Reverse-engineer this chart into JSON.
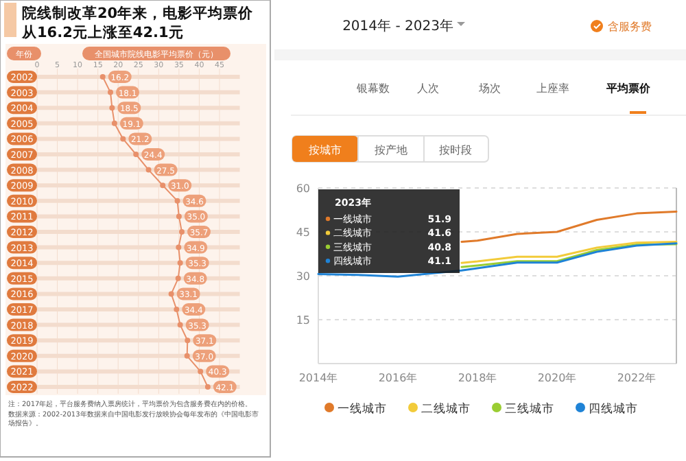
{
  "chart_data": [
    {
      "type": "line",
      "orientation": "horizontal",
      "title": "院线制改革20年来，电影平均票价从16.2元上涨至42.1元",
      "xlabel": "全国城市院线电影平均票价（元）",
      "ylabel": "年份",
      "categories": [
        "2002",
        "2003",
        "2004",
        "2005",
        "2006",
        "2007",
        "2008",
        "2009",
        "2010",
        "2011",
        "2012",
        "2013",
        "2014",
        "2015",
        "2016",
        "2017",
        "2018",
        "2019",
        "2020",
        "2021",
        "2022"
      ],
      "series": [
        {
          "color": "#e8906a",
          "values": [
            16.2,
            18.1,
            18.5,
            19.1,
            21.2,
            24.4,
            27.5,
            31.0,
            34.6,
            35.0,
            35.7,
            34.9,
            35.3,
            34.8,
            33.1,
            34.4,
            35.3,
            37.1,
            37.0,
            40.3,
            42.1
          ],
          "value_labels": [
            "16.2",
            "18.1",
            "18.5",
            "19.1",
            "21.2",
            "24.4",
            "27.5",
            "31.0",
            "34.6",
            "35.0",
            "35.7",
            "34.9",
            "35.3",
            "34.8",
            "33.1",
            "34.4",
            "35.3",
            "37.1",
            "37.0",
            "40.3",
            "42.1"
          ]
        }
      ],
      "xlim": [
        0,
        50
      ],
      "xticks": [
        0,
        5,
        10,
        15,
        20,
        25,
        30,
        35,
        40,
        45
      ],
      "grid": true,
      "marker": "circle",
      "annotations": [
        "注：2017年起，平台服务费纳入票房统计，平均票价为包含服务费在内的价格。",
        "数据来源：2002-2013年数据来自中国电影发行放映协会每年发布的《中国电影市场报告》。"
      ]
    },
    {
      "type": "other",
      "annotations": [
        "2014年 - 2023年",
        "含服务费",
        "银幕数",
        "人次",
        "场次",
        "上座率",
        "平均票价",
        "按城市",
        "按产地",
        "按时段"
      ]
    },
    {
      "type": "line",
      "series": [
        {
          "name": "一线城市",
          "color": "#e07a2a",
          "x": [
            2017.6,
            2018,
            2019,
            2020,
            2021,
            2022,
            2023
          ],
          "values": [
            41.6,
            42,
            44.3,
            45,
            49.1,
            51.3,
            51.9
          ]
        },
        {
          "name": "二线城市",
          "color": "#f2cb3a",
          "x": [
            2017.6,
            2018,
            2019,
            2020,
            2021,
            2022,
            2023
          ],
          "values": [
            34.4,
            34.9,
            36.5,
            36.5,
            39.6,
            41.3,
            41.6
          ]
        },
        {
          "name": "三线城市",
          "color": "#9acd32",
          "x": [
            2017.6,
            2018,
            2019,
            2020,
            2021,
            2022,
            2023
          ],
          "values": [
            33,
            33.5,
            35,
            35,
            38.8,
            40.6,
            40.8
          ]
        },
        {
          "name": "四线城市",
          "color": "#1f83d6",
          "x": [
            2014,
            2015,
            2016,
            2017.6,
            2018,
            2019,
            2020,
            2021,
            2022,
            2023
          ],
          "values": [
            30.6,
            30.3,
            29.7,
            31.8,
            32.6,
            34.5,
            34.5,
            38.2,
            40.3,
            41.1
          ]
        }
      ],
      "xlim": [
        2014,
        2023
      ],
      "xticks": [
        {
          "value": 2014,
          "label": "2014年"
        },
        {
          "value": 2016,
          "label": "2016年"
        },
        {
          "value": 2018,
          "label": "2018年"
        },
        {
          "value": 2020,
          "label": "2020年"
        },
        {
          "value": 2022,
          "label": "2022年"
        }
      ],
      "ylim": [
        0,
        60
      ],
      "yticks": [
        15,
        30,
        45,
        60
      ],
      "grid": "y",
      "legend": "bottom",
      "ref_lines": [
        {
          "axis": "x",
          "value": 2023,
          "label": null,
          "color": "#bbbbbb"
        }
      ],
      "annotations": [
        "2023年",
        "一线城市",
        "51.9",
        "二线城市",
        "41.6",
        "三线城市",
        "40.8",
        "四线城市",
        "41.1"
      ]
    }
  ]
}
